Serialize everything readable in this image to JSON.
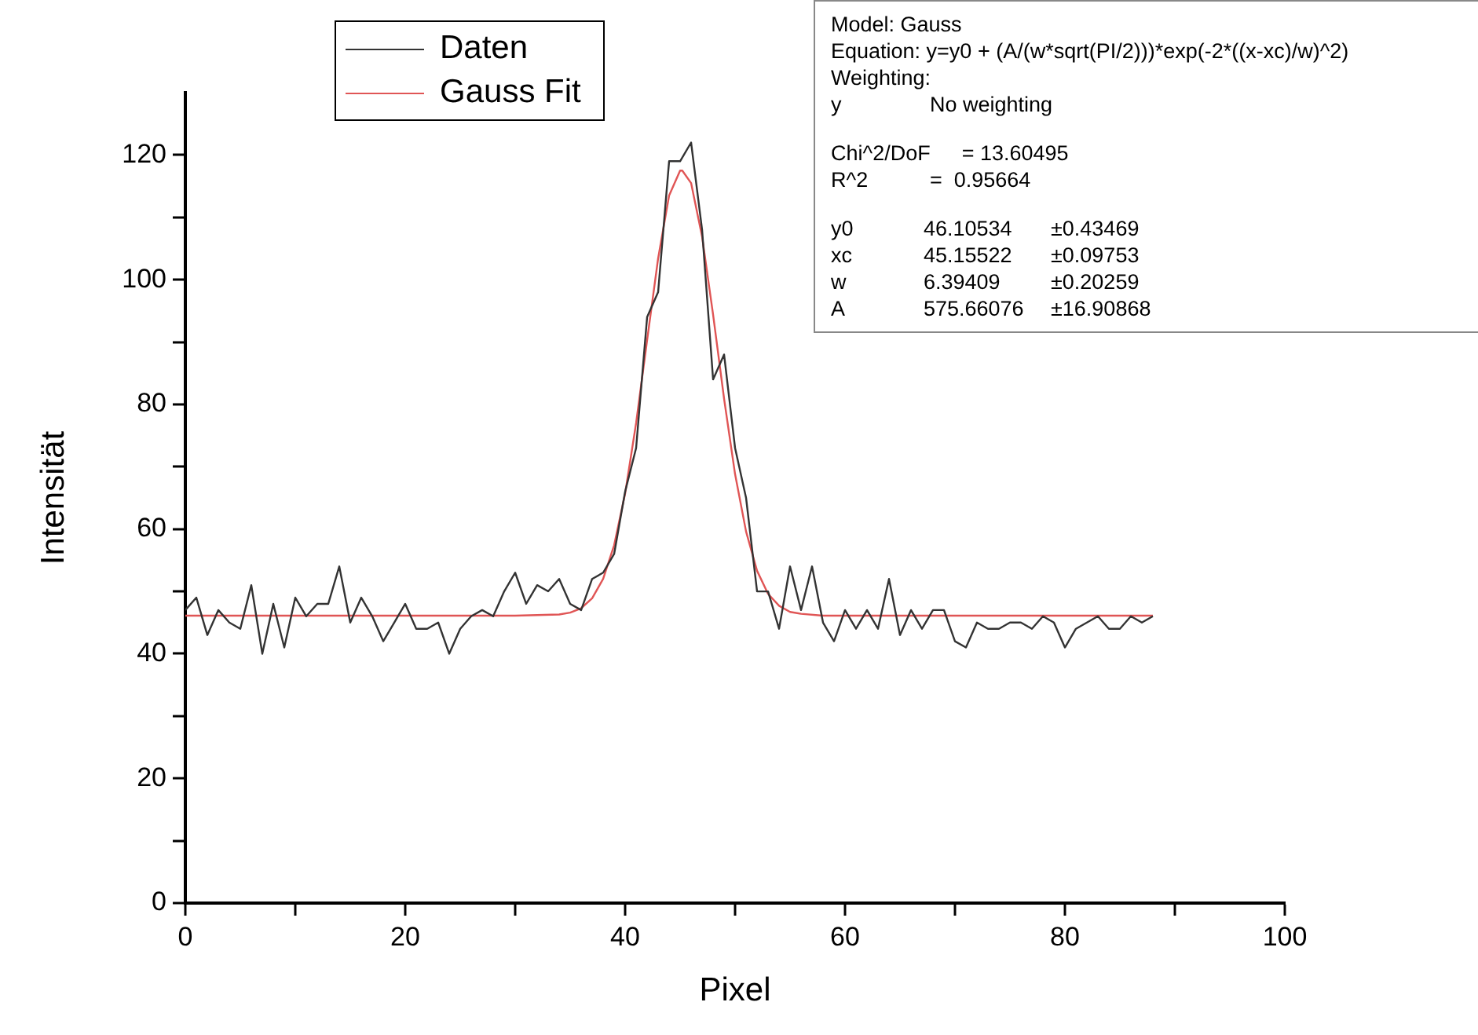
{
  "chart_data": {
    "type": "line",
    "xlabel": "Pixel",
    "ylabel": "Intensität",
    "xlim": [
      0,
      100
    ],
    "xticks": [
      0,
      {
        "value": 10,
        "label": null
      },
      20,
      {
        "value": 30,
        "label": null
      },
      40,
      {
        "value": 50,
        "label": null
      },
      60,
      {
        "value": 70,
        "label": null
      },
      80,
      {
        "value": 90,
        "label": null
      },
      100
    ],
    "ylim": [
      0,
      130
    ],
    "yticks": [
      0,
      {
        "value": 10,
        "label": null
      },
      20,
      {
        "value": 30,
        "label": null
      },
      40,
      {
        "value": 50,
        "label": null
      },
      60,
      {
        "value": 70,
        "label": null
      },
      80,
      {
        "value": 90,
        "label": null
      },
      100,
      {
        "value": 110,
        "label": null
      },
      120
    ],
    "grid": false,
    "legend": "top left",
    "marker": "none",
    "line_style": "solid",
    "series": [
      {
        "name": "Daten",
        "color": "#333333",
        "x": [
          0,
          1,
          2,
          3,
          4,
          5,
          6,
          7,
          8,
          9,
          10,
          11,
          12,
          13,
          14,
          15,
          16,
          17,
          18,
          19,
          20,
          21,
          22,
          23,
          24,
          25,
          26,
          27,
          28,
          29,
          30,
          31,
          32,
          33,
          34,
          35,
          36,
          37,
          38,
          39,
          40,
          41,
          42,
          43,
          44,
          45,
          46,
          47,
          48,
          49,
          50,
          51,
          52,
          53,
          54,
          55,
          56,
          57,
          58,
          59,
          60,
          61,
          62,
          63,
          64,
          65,
          66,
          67,
          68,
          69,
          70,
          71,
          72,
          73,
          74,
          75,
          76,
          77,
          78,
          79,
          80,
          81,
          82,
          83,
          84,
          85,
          86,
          87,
          88
        ],
        "values": [
          47,
          49,
          43,
          47,
          45,
          44,
          51,
          40,
          48,
          41,
          49,
          46,
          48,
          48,
          54,
          45,
          49,
          46,
          42,
          45,
          48,
          44,
          44,
          45,
          40,
          44,
          46,
          47,
          46,
          50,
          53,
          48,
          51,
          50,
          52,
          48,
          47,
          52,
          53,
          56,
          66,
          73,
          94,
          98,
          119,
          119,
          122,
          108,
          84,
          88,
          73,
          65,
          50,
          50,
          44,
          54,
          47,
          54,
          45,
          42,
          47,
          44,
          47,
          44,
          52,
          43,
          47,
          44,
          47,
          47,
          42,
          41,
          45,
          44,
          44,
          45,
          45,
          44,
          46,
          45,
          41,
          44,
          45,
          46,
          44,
          44,
          46,
          45,
          46
        ]
      },
      {
        "name": "Gauss Fit",
        "color": "#e05555",
        "x": [
          0,
          10,
          20,
          30,
          34,
          35,
          36,
          37,
          38,
          39,
          40,
          41,
          42,
          43,
          44,
          45,
          45.2,
          46,
          47,
          48,
          49,
          50,
          51,
          52,
          53,
          54,
          55,
          56,
          58,
          60,
          70,
          80,
          88
        ],
        "values": [
          46.1,
          46.1,
          46.1,
          46.1,
          46.3,
          46.6,
          47.3,
          48.9,
          52,
          57.4,
          65.7,
          77,
          90.3,
          103.4,
          113.5,
          117.5,
          117.5,
          115.5,
          106.9,
          94.4,
          80.9,
          68.8,
          59.6,
          53.3,
          49.6,
          47.7,
          46.7,
          46.4,
          46.1,
          46.1,
          46.1,
          46.1,
          46.1
        ]
      }
    ],
    "annotations": [
      "Model: Gauss",
      "Equation: y=y0 + (A/(w*sqrt(PI/2)))*exp(-2*((x-xc)/w)^2)",
      "Weighting:",
      "y\tNo weighting",
      "Chi^2/DoF\t= 13.60495",
      "R^2\t=  0.95664",
      "y0\t46.10534\t±0.43469",
      "xc\t45.15522\t±0.09753",
      "w\t6.39409\t±0.20259",
      "A\t575.66076\t±16.90868"
    ]
  }
}
